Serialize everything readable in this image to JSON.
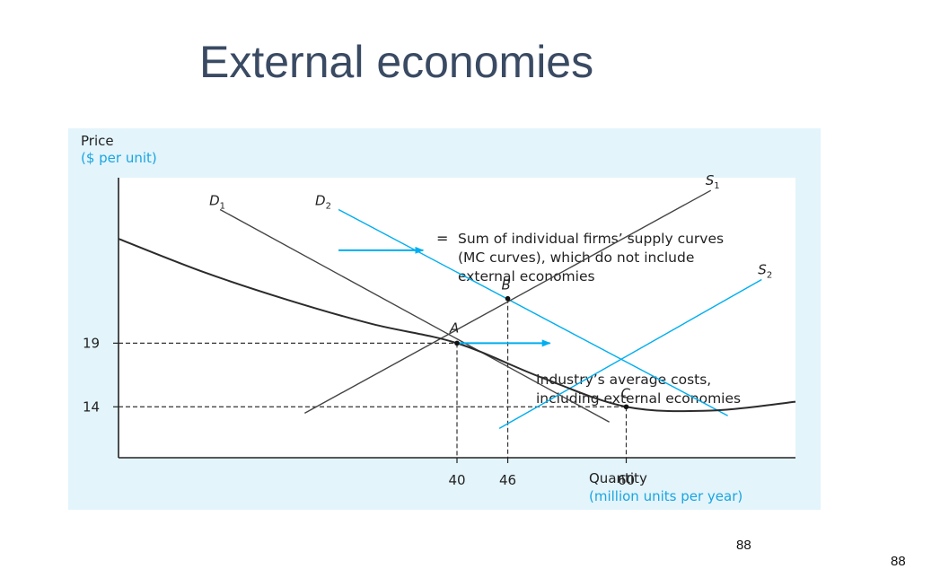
{
  "slide": {
    "title": "External economies",
    "page_number": "88",
    "corner_number": "88"
  },
  "colors": {
    "panel_bg": "#e3f4fb",
    "plot_bg": "#ffffff",
    "accent_blue": "#00aeef",
    "axis_label_blue": "#1ba5e0",
    "black_curve": "#2b2b2b",
    "grey_line": "#444444"
  },
  "chart_data": {
    "type": "line",
    "y_axis": {
      "label": "Price",
      "unit_label": "($ per unit)",
      "range": [
        10,
        32
      ],
      "ticks": [
        19,
        14
      ]
    },
    "x_axis": {
      "label": "Quantity",
      "unit_label": "(million units per year)",
      "range": [
        0,
        80
      ],
      "ticks": [
        40,
        46,
        60
      ]
    },
    "series": [
      {
        "name": "D1",
        "label": "D",
        "sub": "1",
        "style": "grey",
        "points": [
          [
            12,
            29.5
          ],
          [
            58,
            12.8
          ]
        ]
      },
      {
        "name": "D2",
        "label": "D",
        "sub": "2",
        "style": "blue",
        "points": [
          [
            26,
            29.5
          ],
          [
            72,
            13.3
          ]
        ]
      },
      {
        "name": "S1",
        "label": "S",
        "sub": "1",
        "style": "grey",
        "points": [
          [
            22,
            13.5
          ],
          [
            70,
            31
          ]
        ]
      },
      {
        "name": "S2",
        "label": "S",
        "sub": "2",
        "style": "blue",
        "points": [
          [
            45,
            12.3
          ],
          [
            76,
            24
          ]
        ]
      },
      {
        "name": "Industry's average costs",
        "style": "black",
        "points": [
          [
            0,
            27.2
          ],
          [
            10,
            24.6
          ],
          [
            20,
            22.4
          ],
          [
            30,
            20.5
          ],
          [
            40,
            19
          ],
          [
            50,
            16.3
          ],
          [
            60,
            14
          ],
          [
            70,
            13.7
          ],
          [
            80,
            14.4
          ]
        ]
      }
    ],
    "points": [
      {
        "label": "A",
        "x": 40,
        "y": 19
      },
      {
        "label": "B",
        "x": 46,
        "y": 22.5
      },
      {
        "label": "C",
        "x": 60,
        "y": 14
      }
    ],
    "guides": [
      {
        "from": [
          0,
          19
        ],
        "to": [
          40,
          19
        ]
      },
      {
        "from": [
          0,
          14
        ],
        "to": [
          60,
          14
        ]
      },
      {
        "from": [
          40,
          19
        ],
        "to": [
          40,
          10
        ]
      },
      {
        "from": [
          46,
          22.5
        ],
        "to": [
          46,
          10
        ]
      },
      {
        "from": [
          60,
          14
        ],
        "to": [
          60,
          10
        ]
      }
    ],
    "shift_arrows": [
      {
        "from": [
          26,
          26.3
        ],
        "to": [
          36,
          26.3
        ]
      },
      {
        "from": [
          40,
          19
        ],
        "to": [
          51,
          19
        ]
      }
    ],
    "annotations": {
      "s1_prefix": "=",
      "s1_lines": [
        "Sum of individual firms’ supply curves",
        "(MC curves), which do not include",
        "external economies"
      ],
      "ac_lines": [
        "Industry’s average costs,",
        "including external economies"
      ]
    }
  }
}
